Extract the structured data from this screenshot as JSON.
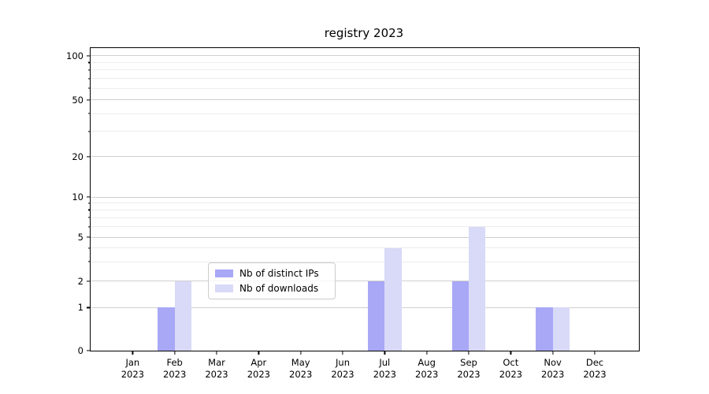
{
  "chart_data": {
    "type": "bar",
    "title": "registry 2023",
    "categories": [
      "Jan",
      "Feb",
      "Mar",
      "Apr",
      "May",
      "Jun",
      "Jul",
      "Aug",
      "Sep",
      "Oct",
      "Nov",
      "Dec"
    ],
    "category_year": "2023",
    "series": [
      {
        "name": "Nb of distinct IPs",
        "color": "#a8a8f7",
        "values": [
          0,
          1,
          0,
          0,
          0,
          0,
          2,
          0,
          2,
          0,
          1,
          0
        ]
      },
      {
        "name": "Nb of downloads",
        "color": "#d9d9f8",
        "values": [
          0,
          2,
          0,
          0,
          0,
          0,
          4,
          0,
          6,
          0,
          1,
          0
        ]
      }
    ],
    "xlabel": "",
    "ylabel": "",
    "y_axis": {
      "scale": "symlog",
      "major_ticks": [
        0,
        1,
        2,
        5,
        10,
        20,
        50,
        100
      ],
      "minor_ticks": [
        3,
        4,
        6,
        7,
        8,
        9,
        30,
        40,
        60,
        70,
        80,
        90
      ],
      "ylim": [
        0,
        120
      ],
      "tick_fractions": {
        "0": 1.0,
        "1": 0.8576,
        "2": 0.7701,
        "5": 0.625,
        "10": 0.4922,
        "20": 0.3586,
        "50": 0.1711,
        "100": 0.026
      }
    },
    "grid": {
      "major_color": "#cfcfcf",
      "minor_color": "#ececec",
      "spine_color": "#000000"
    },
    "legend": {
      "position": "lower-center",
      "border_color": "#cccccc"
    }
  }
}
